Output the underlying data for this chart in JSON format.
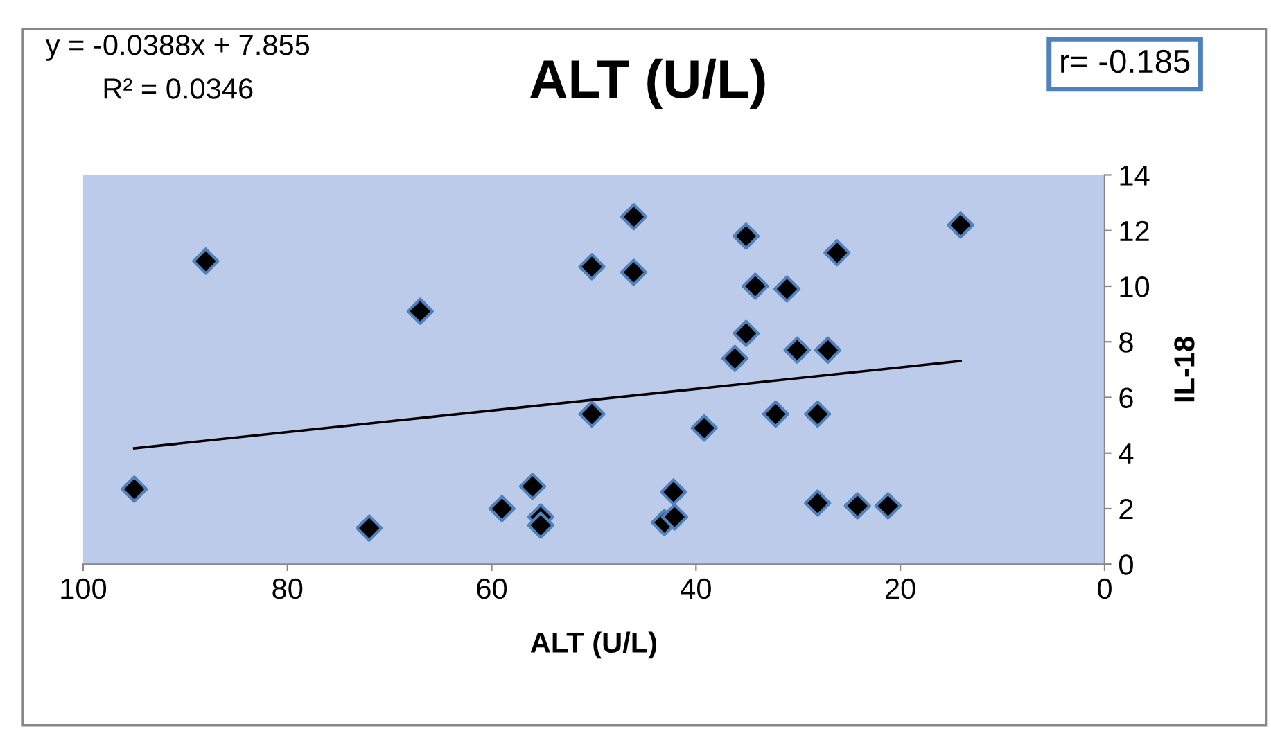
{
  "chart_data": {
    "type": "scatter",
    "title": "ALT (U/L)",
    "xlabel": "ALT (U/L)",
    "ylabel": "IL-18",
    "annotations": [
      "y = -0.0388x + 7.855",
      "R² = 0.0346",
      "r= -0.185"
    ],
    "xlim": [
      100,
      0
    ],
    "xticks": [
      100,
      80,
      60,
      40,
      20,
      0
    ],
    "ylim": [
      0,
      14
    ],
    "yticks": [
      0,
      2,
      4,
      6,
      8,
      10,
      12,
      14
    ],
    "grid": false,
    "legend": false,
    "marker": "diamond",
    "series": [
      {
        "color": "#000000",
        "x": [
          95,
          88,
          67,
          72,
          59,
          56,
          55.2,
          55.2,
          50.2,
          50.2,
          46.1,
          46.1,
          43.1,
          42.1,
          42.2,
          39.2,
          36.2,
          35.1,
          35.1,
          34.2,
          32.2,
          31.1,
          30.1,
          27.1,
          28.1,
          28.1,
          26.2,
          24.2,
          21.2,
          14.1
        ],
        "values": [
          2.7,
          10.9,
          9.1,
          1.3,
          2.0,
          2.8,
          1.7,
          1.4,
          5.4,
          10.7,
          12.5,
          10.5,
          1.5,
          1.7,
          2.6,
          4.9,
          7.4,
          8.3,
          11.8,
          10.0,
          5.4,
          9.9,
          7.7,
          7.7,
          5.4,
          2.2,
          11.2,
          2.1,
          2.1,
          12.2
        ]
      },
      {
        "type": "line",
        "color": "#000000",
        "marker": "none",
        "x": [
          95,
          14.1
        ],
        "values": [
          4.17,
          7.31
        ]
      }
    ]
  }
}
